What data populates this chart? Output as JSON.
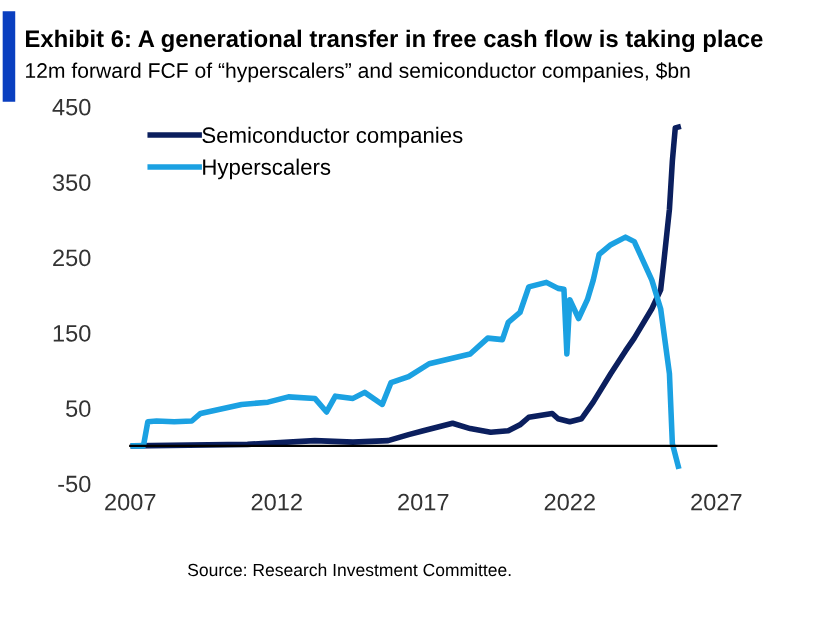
{
  "chart_data": {
    "type": "line",
    "title": "Exhibit 6: A generational transfer in free cash flow is taking place",
    "subtitle": "12m forward FCF of “hyperscalers” and semiconductor companies, $bn",
    "series": [
      {
        "name": "Semiconductor companies",
        "color": "#0b1f5e",
        "x": [
          2007.1,
          2009.0,
          2011.0,
          2013.3,
          2014.6,
          2015.8,
          2016.5,
          2017.0,
          2018.0,
          2018.6,
          2019.3,
          2019.9,
          2020.3,
          2020.6,
          2021.4,
          2021.6,
          2022.0,
          2022.4,
          2022.8,
          2023.4,
          2023.9,
          2024.2,
          2024.8,
          2025.1,
          2025.2,
          2025.4,
          2025.5,
          2025.6,
          2025.7
        ],
        "values": [
          0,
          1,
          2,
          7,
          5,
          7,
          15,
          20,
          30,
          23,
          18,
          20,
          28,
          38,
          43,
          36,
          32,
          36,
          58,
          96,
          126,
          143,
          182,
          207,
          241,
          314,
          378,
          422,
          423
        ]
      },
      {
        "name": "Hyperscalers",
        "color": "#1ba1e2",
        "x": [
          2007.1,
          2007.45,
          2007.6,
          2007.9,
          2008.5,
          2009.1,
          2009.4,
          2010.1,
          2010.8,
          2011.7,
          2012.4,
          2013.3,
          2013.7,
          2014.0,
          2014.6,
          2015.0,
          2015.6,
          2015.9,
          2016.5,
          2017.2,
          2018.6,
          2019.2,
          2019.7,
          2019.9,
          2020.3,
          2020.6,
          2021.2,
          2021.6,
          2021.8,
          2021.9,
          2022.0,
          2022.3,
          2022.6,
          2022.8,
          2023.0,
          2023.4,
          2023.9,
          2024.2,
          2024.4,
          2024.8,
          2025.1,
          2025.4,
          2025.5,
          2025.7
        ],
        "values": [
          0,
          0,
          32,
          33,
          32,
          33,
          43,
          49,
          55,
          58,
          65,
          63,
          45,
          66,
          63,
          71,
          55,
          84,
          92,
          109,
          122,
          143,
          141,
          164,
          177,
          211,
          217,
          209,
          208,
          122,
          194,
          169,
          194,
          220,
          254,
          267,
          277,
          271,
          254,
          220,
          182,
          96,
          3,
          -27
        ]
      }
    ],
    "xlim": [
      2007,
      2027
    ],
    "xticks": [
      2007,
      2012,
      2017,
      2022,
      2027
    ],
    "ylim": [
      -50,
      450
    ],
    "yticks": [
      -50,
      50,
      150,
      250,
      350,
      450
    ],
    "legend": "top left",
    "grid": false,
    "annotations": [
      "Source: Research Investment Committee."
    ]
  }
}
